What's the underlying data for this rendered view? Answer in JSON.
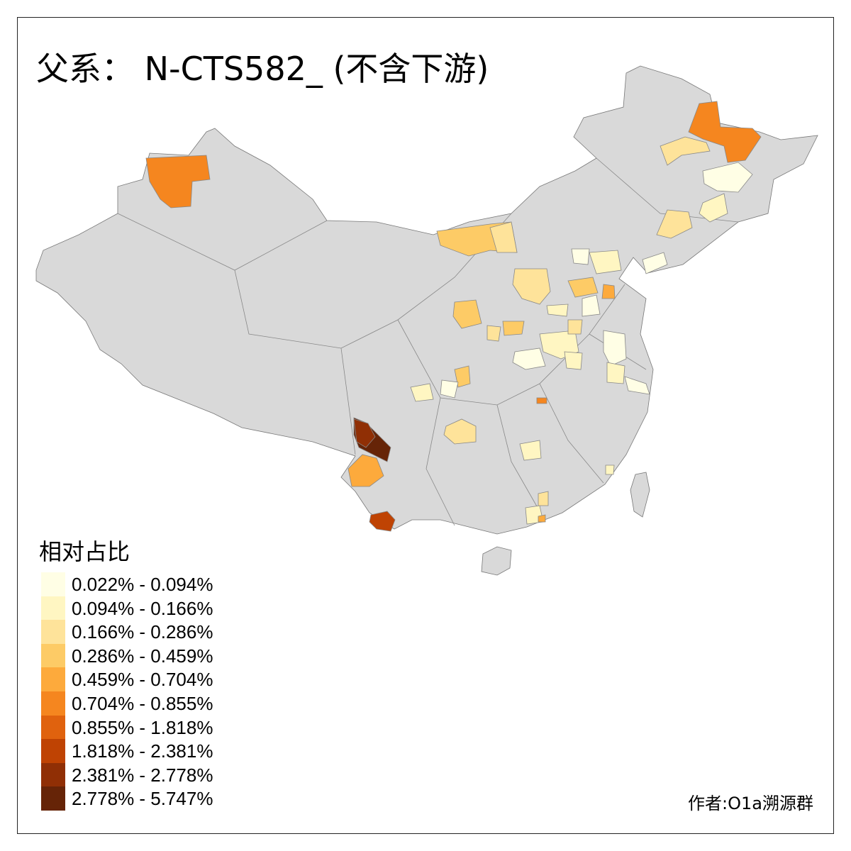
{
  "title": "父系： N-CTS582_ (不含下游)",
  "legend": {
    "title": "相对占比",
    "classes": [
      {
        "label": "0.022% - 0.094%",
        "color": "#FFFEE5"
      },
      {
        "label": "0.094% - 0.166%",
        "color": "#FFF6C2"
      },
      {
        "label": "0.166% - 0.286%",
        "color": "#FEE39A"
      },
      {
        "label": "0.286% - 0.459%",
        "color": "#FDCB66"
      },
      {
        "label": "0.459% - 0.704%",
        "color": "#FDAA3C"
      },
      {
        "label": "0.704% - 0.855%",
        "color": "#F5861F"
      },
      {
        "label": "0.855% - 1.818%",
        "color": "#E0620E"
      },
      {
        "label": "1.818% - 2.381%",
        "color": "#BF4303"
      },
      {
        "label": "2.381% - 2.778%",
        "color": "#902F05"
      },
      {
        "label": "2.778% - 5.747%",
        "color": "#662407"
      }
    ]
  },
  "no_data_color": "#D9D9D9",
  "credit": "作者:O1a溯源群"
}
